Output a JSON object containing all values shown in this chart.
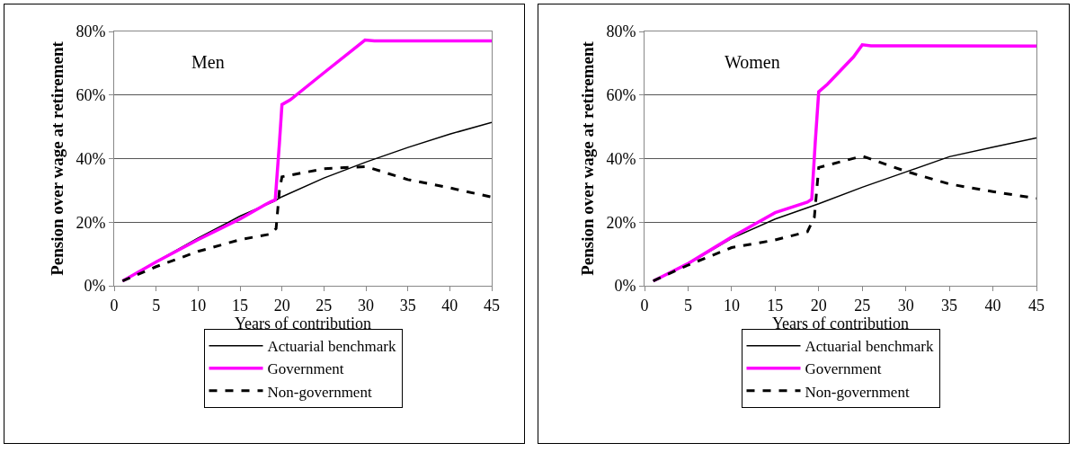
{
  "chart_data": [
    {
      "type": "line",
      "annotations": [
        "Men"
      ],
      "xlabel": "Years of contribution",
      "ylabel": "Pension over wage at retirement",
      "xlim": [
        0,
        45
      ],
      "xticks": [
        0,
        5,
        10,
        15,
        20,
        25,
        30,
        35,
        40,
        45
      ],
      "ylim": [
        0,
        80
      ],
      "yticks": [
        {
          "value": 0,
          "label": "0%"
        },
        {
          "value": 20,
          "label": "20%"
        },
        {
          "value": 40,
          "label": "40%"
        },
        {
          "value": 60,
          "label": "60%"
        },
        {
          "value": 80,
          "label": "80%"
        }
      ],
      "grid": "y",
      "legend": "bottom",
      "marker": "none",
      "series": [
        {
          "name": "Actuarial benchmark",
          "color": "#000000",
          "line_style": "solid",
          "x": [
            1,
            5,
            10,
            15,
            19,
            20,
            25,
            30,
            35,
            40,
            45
          ],
          "values": [
            1.5,
            7.6,
            15,
            21.9,
            26.5,
            28,
            33.9,
            38.9,
            43.5,
            47.7,
            51.4
          ]
        },
        {
          "name": "Government",
          "color": "#ff00ff",
          "line_style": "solid",
          "x": [
            1,
            5,
            10,
            15,
            18,
            18.7,
            19.2,
            19.7,
            20,
            21,
            25,
            29.9,
            31,
            45
          ],
          "values": [
            1.5,
            7.5,
            14.5,
            21,
            25.5,
            26.5,
            27,
            45,
            57,
            58.5,
            67,
            77.3,
            77,
            77
          ]
        },
        {
          "name": "Non-government",
          "color": "#000000",
          "line_style": "dashed",
          "x": [
            1,
            5,
            10,
            15,
            18.7,
            19.3,
            19.7,
            20,
            25,
            30,
            35,
            40,
            45
          ],
          "values": [
            1.5,
            6,
            10.8,
            14.5,
            16.3,
            18,
            30,
            34.3,
            36.8,
            37.5,
            33.4,
            30.8,
            27.9
          ]
        }
      ]
    },
    {
      "type": "line",
      "annotations": [
        "Women"
      ],
      "xlabel": "Years of contribution",
      "ylabel": "Pension over wage at retirement",
      "xlim": [
        0,
        45
      ],
      "xticks": [
        0,
        5,
        10,
        15,
        20,
        25,
        30,
        35,
        40,
        45
      ],
      "ylim": [
        0,
        80
      ],
      "yticks": [
        {
          "value": 0,
          "label": "0%"
        },
        {
          "value": 20,
          "label": "20%"
        },
        {
          "value": 40,
          "label": "40%"
        },
        {
          "value": 60,
          "label": "60%"
        },
        {
          "value": 80,
          "label": "80%"
        }
      ],
      "grid": "y",
      "legend": "bottom",
      "marker": "none",
      "series": [
        {
          "name": "Actuarial benchmark",
          "color": "#000000",
          "line_style": "solid",
          "x": [
            1,
            5,
            10,
            15,
            20,
            25,
            30,
            35,
            40,
            45
          ],
          "values": [
            1.5,
            6.8,
            14.9,
            21,
            25.8,
            31,
            35.8,
            40.6,
            43.6,
            46.5
          ]
        },
        {
          "name": "Government",
          "color": "#ff00ff",
          "line_style": "solid",
          "x": [
            1,
            5,
            10,
            15,
            18.7,
            19.2,
            19.6,
            20,
            21,
            24,
            25,
            26,
            45
          ],
          "values": [
            1.5,
            7,
            15.3,
            23,
            26.3,
            27.2,
            45,
            61,
            63.4,
            72,
            75.8,
            75.5,
            75.4
          ]
        },
        {
          "name": "Non-government",
          "color": "#000000",
          "line_style": "dashed",
          "x": [
            1,
            5,
            10,
            15,
            18.7,
            19.5,
            20,
            25,
            30,
            35,
            40,
            45
          ],
          "values": [
            1.5,
            6.5,
            12,
            14.4,
            17,
            21.5,
            37.2,
            40.8,
            36,
            32,
            29.6,
            27.5
          ]
        }
      ]
    }
  ]
}
